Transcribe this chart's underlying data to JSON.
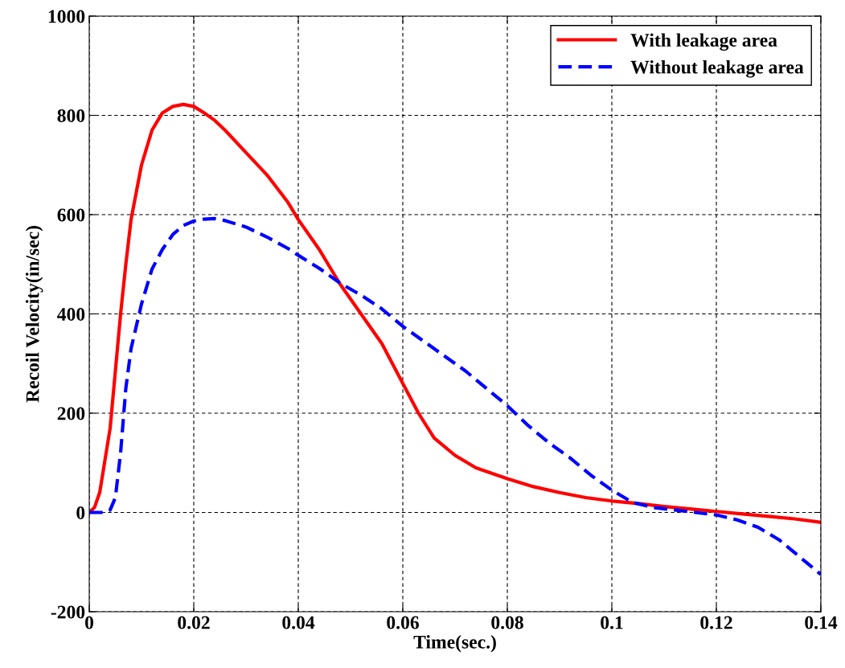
{
  "chart_data": {
    "type": "line",
    "xlabel": "Time(sec.)",
    "ylabel": "Recoil Velocity(in/sec)",
    "xlim": [
      0,
      0.14
    ],
    "xticks": [
      0,
      0.02,
      0.04,
      0.06,
      0.08,
      0.1,
      0.12,
      0.14
    ],
    "ylim": [
      -200,
      1000
    ],
    "yticks": [
      -200,
      0,
      200,
      400,
      600,
      800,
      1000
    ],
    "grid": true,
    "legend": "top right",
    "marker": "none",
    "series": [
      {
        "name": "With leakage area",
        "color": "#ff0000",
        "line_style": "solid",
        "x": [
          0,
          0.001,
          0.002,
          0.004,
          0.006,
          0.007,
          0.008,
          0.01,
          0.012,
          0.014,
          0.016,
          0.018,
          0.02,
          0.022,
          0.024,
          0.026,
          0.03,
          0.034,
          0.038,
          0.04,
          0.044,
          0.048,
          0.052,
          0.056,
          0.06,
          0.063,
          0.066,
          0.07,
          0.074,
          0.08,
          0.085,
          0.09,
          0.095,
          0.1,
          0.105,
          0.11,
          0.115,
          0.12,
          0.125,
          0.13,
          0.135,
          0.14
        ],
        "values": [
          0,
          10,
          40,
          170,
          400,
          500,
          590,
          700,
          770,
          805,
          818,
          822,
          818,
          805,
          790,
          770,
          725,
          680,
          625,
          590,
          530,
          460,
          400,
          340,
          260,
          200,
          150,
          115,
          90,
          68,
          52,
          40,
          30,
          23,
          18,
          12,
          7,
          2,
          -3,
          -8,
          -13,
          -20
        ]
      },
      {
        "name": "Without leakage area",
        "color": "#0000ff",
        "line_style": "dashed",
        "x": [
          0,
          0.003,
          0.004,
          0.005,
          0.006,
          0.007,
          0.008,
          0.01,
          0.012,
          0.014,
          0.016,
          0.018,
          0.02,
          0.022,
          0.024,
          0.026,
          0.03,
          0.034,
          0.038,
          0.04,
          0.044,
          0.048,
          0.052,
          0.056,
          0.06,
          0.064,
          0.068,
          0.072,
          0.076,
          0.08,
          0.084,
          0.088,
          0.092,
          0.096,
          0.1,
          0.104,
          0.108,
          0.112,
          0.116,
          0.12,
          0.124,
          0.128,
          0.132,
          0.136,
          0.14
        ],
        "values": [
          0,
          0,
          5,
          30,
          120,
          250,
          330,
          420,
          490,
          530,
          560,
          578,
          587,
          591,
          592,
          588,
          575,
          555,
          532,
          518,
          492,
          462,
          438,
          410,
          375,
          345,
          315,
          285,
          250,
          215,
          175,
          140,
          110,
          75,
          45,
          20,
          10,
          5,
          0,
          -5,
          -15,
          -30,
          -55,
          -90,
          -125
        ]
      }
    ]
  }
}
